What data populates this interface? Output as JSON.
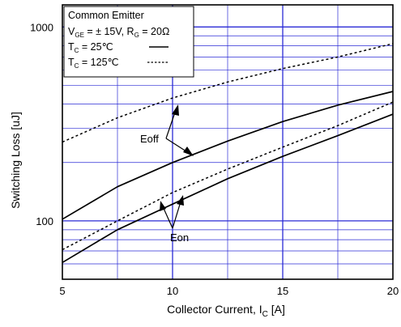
{
  "chart_data": {
    "type": "line",
    "xlabel": "Collector Current, I_C [A]",
    "ylabel": "Switching Loss [uJ]",
    "xlim": [
      5,
      20
    ],
    "ylim": [
      50,
      1300
    ],
    "y_scale": "log",
    "grid": true,
    "x_ticks": [
      "5",
      "10",
      "15",
      "20"
    ],
    "y_ticks": [
      {
        "value": 100,
        "label": "100"
      },
      {
        "value": 1000,
        "label": "1000"
      }
    ],
    "legend": {
      "placement": "top-left",
      "lines": [
        "Common Emitter",
        "V_GE = ±  15V, R_G = 20Ω",
        "T_C =   25℃",
        "T_C = 125℃"
      ]
    },
    "annotations": [
      "Eoff",
      "Eon"
    ],
    "series": [
      {
        "group": "Eoff",
        "condition": "T_C = 125℃",
        "style": "dashed",
        "x": [
          5,
          7.5,
          10,
          12.5,
          15,
          17.5,
          20
        ],
        "y": [
          255,
          340,
          430,
          520,
          610,
          700,
          820
        ]
      },
      {
        "group": "Eoff",
        "condition": "T_C = 25℃",
        "style": "solid",
        "x": [
          5,
          7.5,
          10,
          12.5,
          15,
          17.5,
          20
        ],
        "y": [
          102,
          150,
          200,
          258,
          325,
          395,
          465
        ]
      },
      {
        "group": "Eon",
        "condition": "T_C = 125℃",
        "style": "dashed",
        "x": [
          5,
          7.5,
          10,
          12.5,
          15,
          17.5,
          20
        ],
        "y": [
          71,
          100,
          140,
          185,
          240,
          310,
          410
        ]
      },
      {
        "group": "Eon",
        "condition": "T_C = 25℃",
        "style": "solid",
        "x": [
          5,
          7.5,
          10,
          12.5,
          15,
          17.5,
          20
        ],
        "y": [
          61,
          90,
          122,
          165,
          215,
          275,
          355
        ]
      }
    ]
  }
}
